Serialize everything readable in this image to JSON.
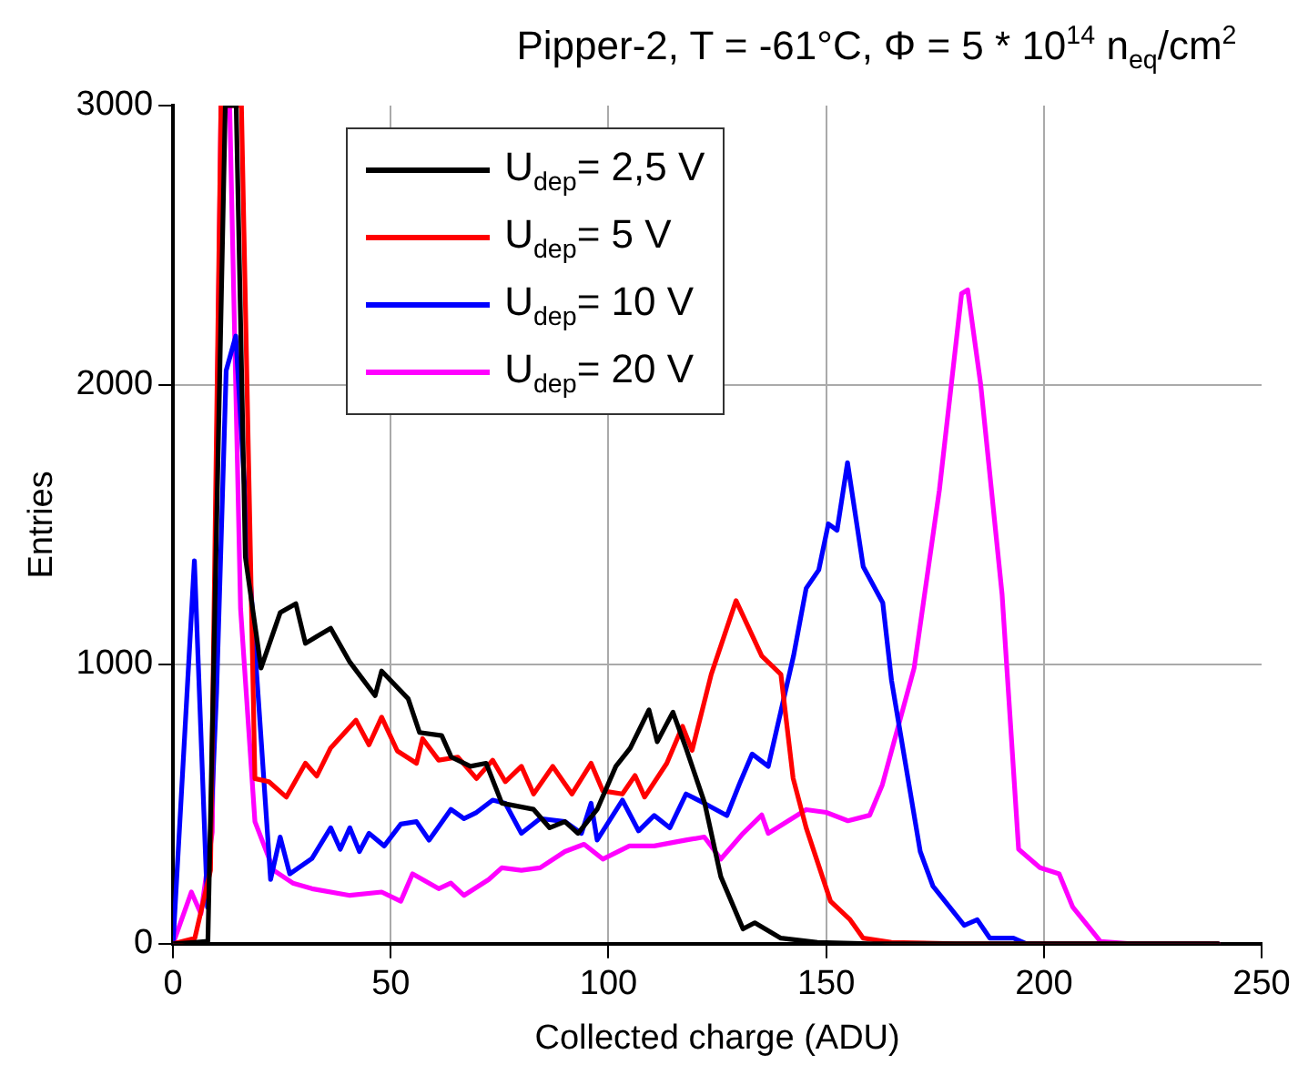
{
  "chart_data": {
    "type": "line",
    "title": "Pipper-2, T = -61°C, Φ = 5 * 10$^{14}$ n$_{eq}$/cm$^{2}$",
    "xlabel": "Collected charge (ADU)",
    "ylabel": "Entries",
    "xlim": [
      0,
      250
    ],
    "xticks": [
      0,
      50,
      100,
      150,
      200,
      250
    ],
    "ylim": [
      0,
      3000
    ],
    "yticks": [
      0,
      1000,
      2000,
      3000
    ],
    "grid": true,
    "legend": "top left",
    "marker": "none",
    "line_style": "solid",
    "series": [
      {
        "name": "U$_{dep}$= 2,5 V",
        "color": "#000000",
        "x": [
          0,
          5,
          8,
          10,
          12,
          14.5,
          16.6,
          20.2,
          24.6,
          28.2,
          30.4,
          33,
          36.2,
          40.6,
          46.4,
          47.9,
          54,
          56.6,
          61.7,
          63.9,
          68.3,
          71.9,
          75.5,
          82.8,
          86.5,
          90,
          93,
          97.4,
          101.7,
          105,
          109.3,
          111.2,
          114.8,
          117.8,
          122.1,
          125.8,
          130.9,
          133.6,
          139.6,
          148,
          160,
          200,
          240
        ],
        "values": [
          0,
          5,
          9,
          1500,
          3000,
          3000,
          1384,
          987,
          1185,
          1217,
          1075,
          1100,
          1129,
          1008,
          888,
          976,
          877,
          756,
          745,
          668,
          635,
          646,
          503,
          481,
          415,
          437,
          395,
          481,
          635,
          700,
          837,
          723,
          829,
          700,
          503,
          240,
          53,
          75,
          20,
          5,
          0,
          0,
          0
        ]
      },
      {
        "name": "U$_{dep}$= 5 V",
        "color": "#ff0000",
        "x": [
          0,
          5,
          8.6,
          11,
          13,
          15.7,
          18.8,
          22,
          26,
          30.4,
          33,
          36.2,
          42,
          45,
          47.9,
          51.5,
          55.9,
          57.3,
          61,
          65.4,
          69.7,
          73.4,
          76.3,
          80,
          82.8,
          87.2,
          91.6,
          96,
          98.7,
          103.2,
          106.1,
          108.3,
          113.4,
          117,
          119.2,
          123.6,
          129.3,
          135.2,
          139.6,
          142.4,
          145.4,
          151,
          155.5,
          158.5,
          165,
          180,
          240
        ],
        "values": [
          0,
          20,
          263,
          3000,
          3000,
          3000,
          591,
          580,
          525,
          646,
          600,
          701,
          800,
          712,
          811,
          690,
          646,
          734,
          657,
          668,
          591,
          657,
          580,
          635,
          536,
          635,
          536,
          646,
          547,
          536,
          602,
          525,
          646,
          778,
          692,
          964,
          1228,
          1030,
          964,
          593,
          415,
          152,
          86,
          20,
          5,
          0,
          0
        ]
      },
      {
        "name": "U$_{dep}$= 10 V",
        "color": "#0000ff",
        "x": [
          0,
          4.9,
          7.9,
          10,
          12.2,
          14.4,
          17.3,
          22.4,
          24.6,
          26.8,
          31.9,
          36.2,
          38.4,
          40.6,
          42.8,
          45,
          48.5,
          52.3,
          55.9,
          58.8,
          63.8,
          66.8,
          69.7,
          73.4,
          76.3,
          80,
          84.3,
          90,
          93.8,
          96,
          97.4,
          103.2,
          106.9,
          110.5,
          114.1,
          117.8,
          122,
          127.2,
          130.1,
          133,
          136.7,
          142.5,
          145.4,
          148.3,
          150.5,
          152.5,
          154.9,
          158.5,
          163,
          165,
          171.6,
          174.5,
          181.7,
          184.7,
          187.6,
          193,
          196,
          240
        ],
        "values": [
          0,
          1371,
          131,
          900,
          2052,
          2175,
          1404,
          230,
          382,
          250,
          305,
          415,
          338,
          415,
          330,
          395,
          350,
          428,
          437,
          371,
          481,
          448,
          470,
          514,
          503,
          395,
          448,
          437,
          395,
          503,
          371,
          514,
          404,
          459,
          415,
          536,
          503,
          459,
          573,
          679,
          635,
          1030,
          1272,
          1338,
          1503,
          1480,
          1722,
          1350,
          1220,
          943,
          330,
          207,
          66,
          86,
          20,
          20,
          0,
          0
        ]
      },
      {
        "name": "U$_{dep}$= 20 V",
        "color": "#ff00ff",
        "x": [
          0,
          4.2,
          6.4,
          9,
          11,
          13,
          15.5,
          18.8,
          23.1,
          27.5,
          31.9,
          40.6,
          47.9,
          52.3,
          55,
          61,
          63.8,
          66.8,
          72.5,
          75.5,
          80,
          84.3,
          90,
          94.4,
          98.7,
          104.8,
          110.5,
          117.8,
          122,
          125.8,
          130.9,
          135.2,
          136.7,
          145.4,
          150,
          155,
          160,
          162.9,
          170.2,
          176,
          181.1,
          182.5,
          185.5,
          190.4,
          194.2,
          199.1,
          203.5,
          206.6,
          213,
          220,
          238
        ],
        "values": [
          0,
          185,
          107,
          400,
          3000,
          3000,
          1200,
          437,
          263,
          217,
          197,
          173,
          185,
          152,
          250,
          197,
          217,
          173,
          230,
          272,
          263,
          272,
          330,
          356,
          303,
          350,
          350,
          371,
          382,
          303,
          395,
          461,
          395,
          480,
          470,
          440,
          460,
          569,
          987,
          1624,
          2327,
          2340,
          2000,
          1250,
          338,
          272,
          250,
          132,
          8,
          0,
          0
        ]
      }
    ]
  }
}
